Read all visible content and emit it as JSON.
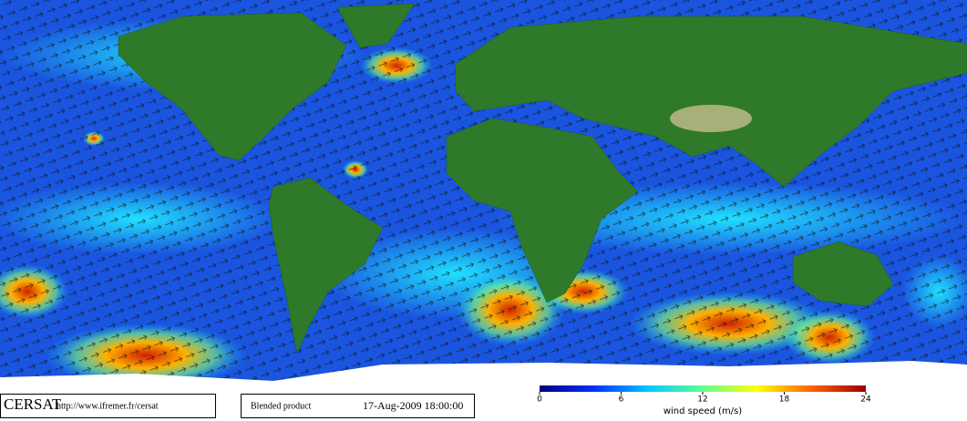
{
  "footer": {
    "logo": "CERSAT",
    "url": "http://www.ifremer.fr/cersat",
    "product": "Blended product",
    "date": "17-Aug-2009 18:00:00"
  },
  "colorbar": {
    "label": "wind speed (m/s)",
    "range": [
      0,
      24
    ],
    "ticks": [
      0,
      6,
      12,
      18,
      24
    ],
    "colors": [
      "#000080",
      "#0030ff",
      "#00c8ff",
      "#60ff90",
      "#ffff00",
      "#ff6000",
      "#a00000"
    ]
  }
}
